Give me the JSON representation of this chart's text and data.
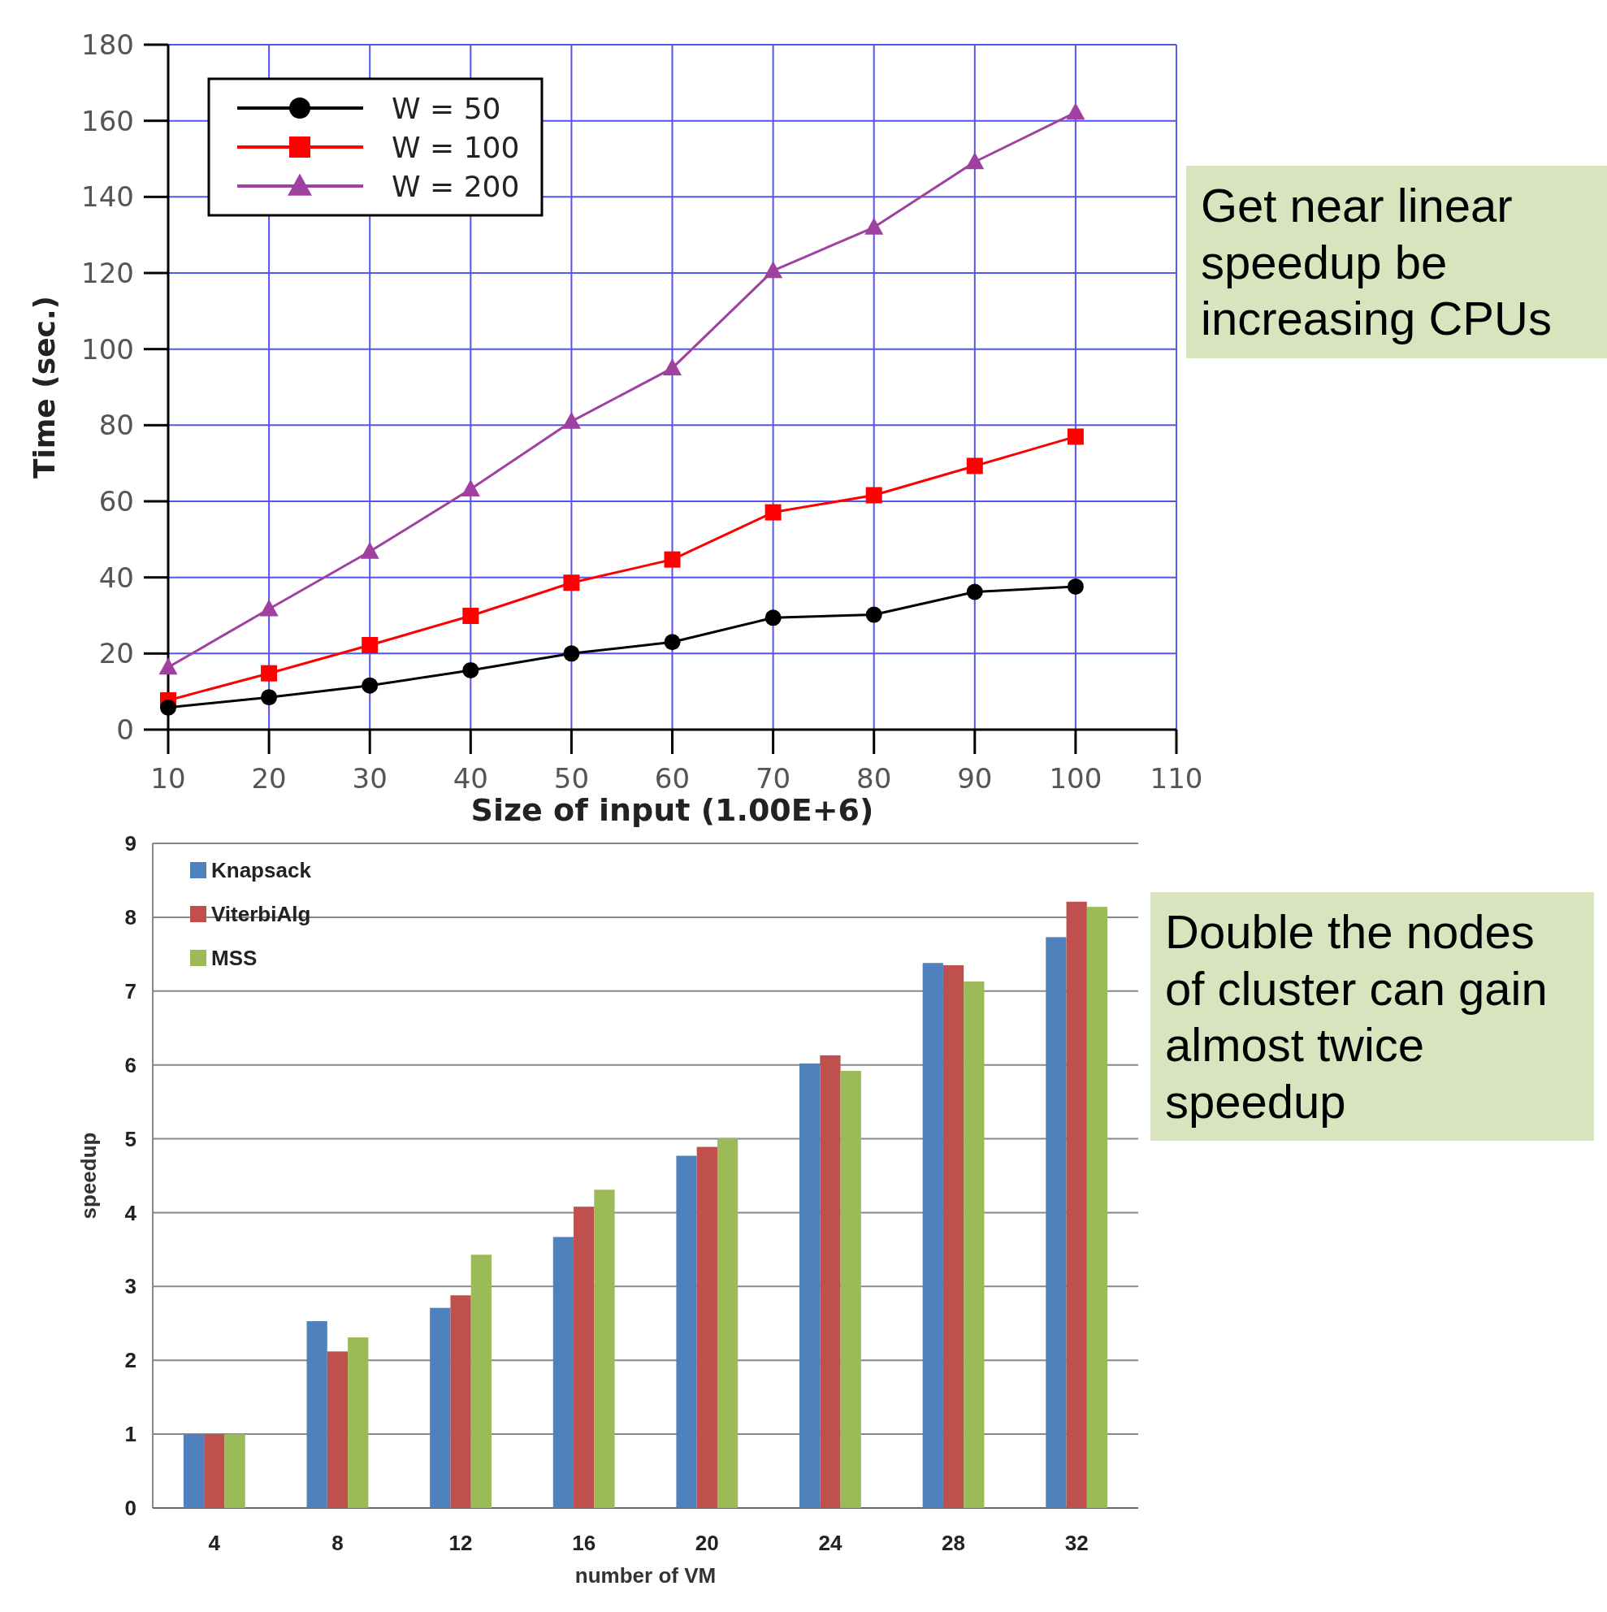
{
  "chart_data": [
    {
      "type": "line",
      "xlabel": "Size of input (1.00E+6)",
      "ylabel": "Time (sec.)",
      "x": [
        10,
        20,
        30,
        40,
        50,
        60,
        70,
        80,
        90,
        100
      ],
      "xlim": [
        10,
        110
      ],
      "xticks": [
        10,
        20,
        30,
        40,
        50,
        60,
        70,
        80,
        90,
        100,
        110
      ],
      "ylim": [
        0,
        180
      ],
      "yticks": [
        0,
        20,
        40,
        60,
        80,
        100,
        120,
        140,
        160,
        180
      ],
      "grid": true,
      "legend": "top left",
      "annotations": [
        "Get near linear speedup be increasing CPUs"
      ],
      "series": [
        {
          "name": "W = 50",
          "color": "#000000",
          "marker": "circle",
          "values": [
            5.8,
            8.5,
            11.6,
            15.6,
            20,
            23,
            29.4,
            30.2,
            36.2,
            37.6
          ]
        },
        {
          "name": "W = 100",
          "color": "#ff0000",
          "marker": "square",
          "values": [
            7.7,
            14.8,
            22.2,
            29.9,
            38.6,
            44.7,
            57.1,
            61.6,
            69.3,
            77
          ]
        },
        {
          "name": "W = 200",
          "color": "#a040a0",
          "marker": "triangle",
          "values": [
            16.4,
            31.7,
            46.8,
            63.2,
            81,
            95,
            120.6,
            132,
            149.2,
            162.2
          ]
        }
      ]
    },
    {
      "type": "bar",
      "xlabel": "number of VM",
      "ylabel": "speedup",
      "categories": [
        "4",
        "8",
        "12",
        "16",
        "20",
        "24",
        "28",
        "32"
      ],
      "ylim": [
        0,
        9
      ],
      "yticks": [
        0,
        1,
        2,
        3,
        4,
        5,
        6,
        7,
        8,
        9
      ],
      "grid": "y",
      "legend": "top left",
      "annotations": [
        "Double the nodes of cluster can gain almost twice speedup"
      ],
      "series": [
        {
          "name": "Knapsack",
          "color": "#4f81bd",
          "values": [
            1,
            2.53,
            2.71,
            3.67,
            4.77,
            6.02,
            7.38,
            7.73
          ]
        },
        {
          "name": "ViterbiAlg",
          "color": "#c0504d",
          "values": [
            1,
            2.12,
            2.88,
            4.08,
            4.89,
            6.13,
            7.35,
            8.21
          ]
        },
        {
          "name": "MSS",
          "color": "#9bbb59",
          "values": [
            1,
            2.31,
            3.43,
            4.31,
            5.01,
            5.92,
            7.13,
            8.14
          ]
        }
      ]
    }
  ]
}
